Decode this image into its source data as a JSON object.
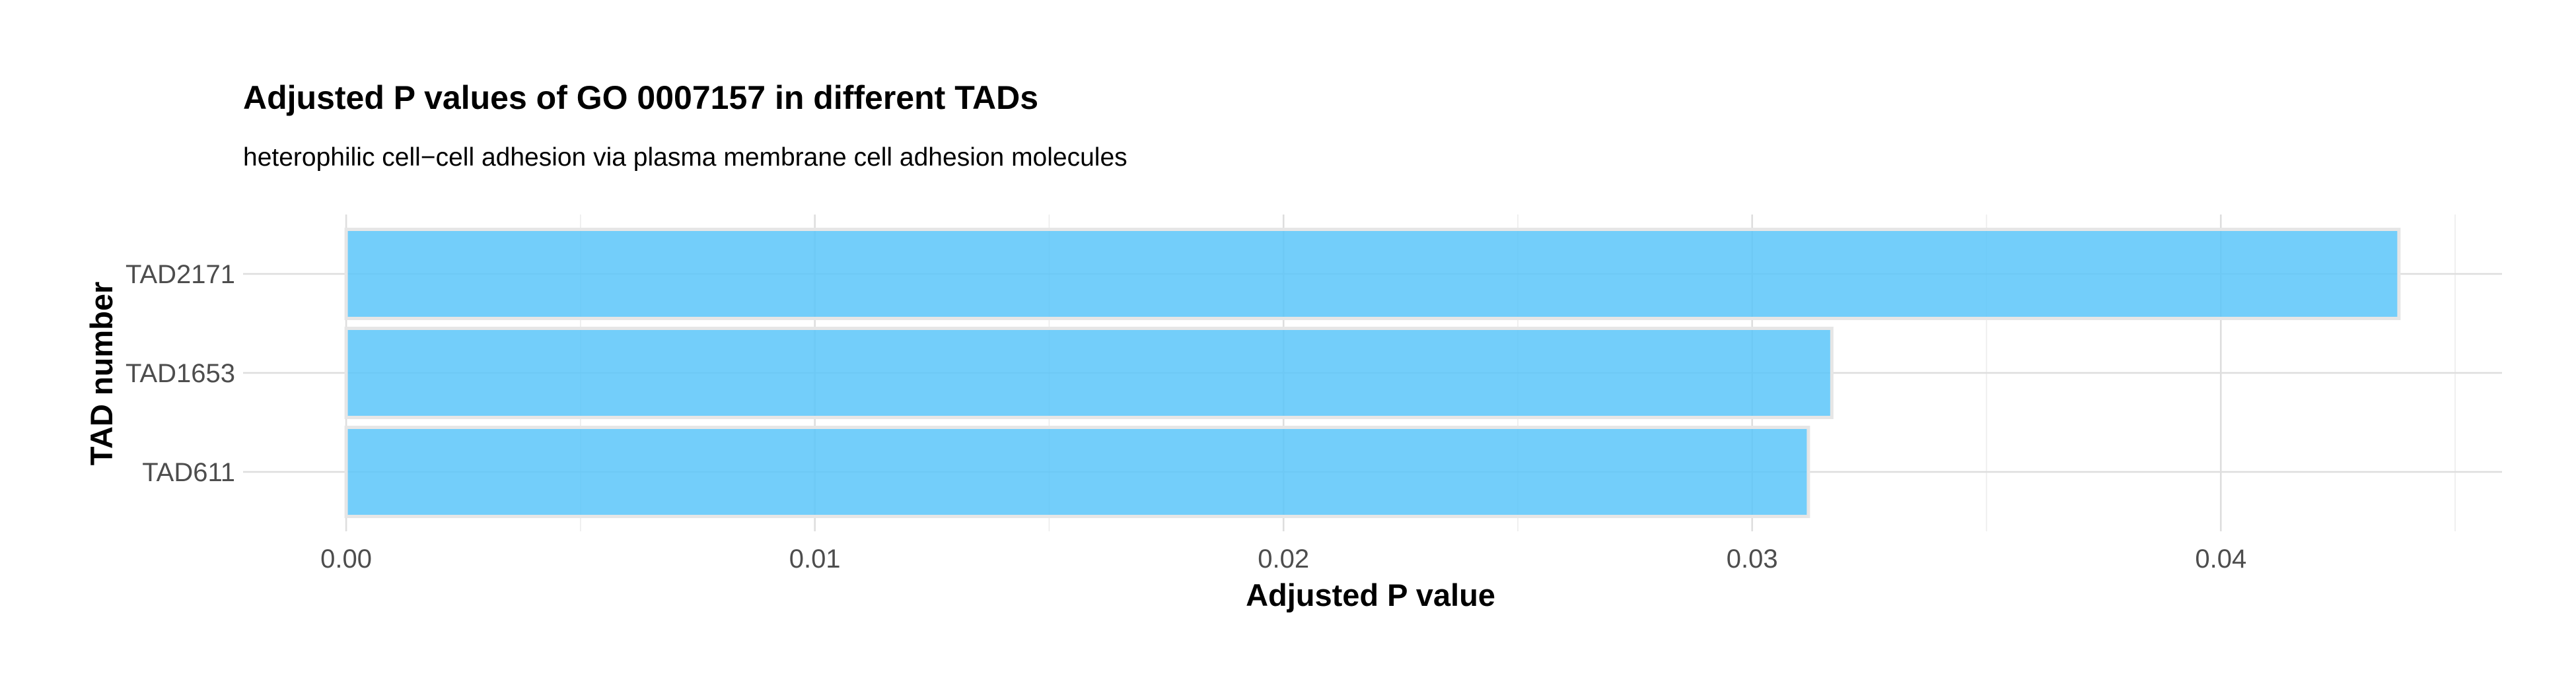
{
  "chart_data": {
    "type": "bar",
    "orientation": "horizontal",
    "title": "Adjusted P values of GO 0007157 in different TADs",
    "subtitle": "heterophilic cell−cell adhesion via plasma membrane cell adhesion molecules",
    "xlabel": "Adjusted P value",
    "ylabel": "TAD number",
    "categories": [
      "TAD2171",
      "TAD1653",
      "TAD611"
    ],
    "values": [
      0.0438,
      0.0317,
      0.0312
    ],
    "xlim": [
      -0.0022,
      0.046
    ],
    "x_ticks": [
      0,
      0.01,
      0.02,
      0.03,
      0.04
    ],
    "x_tick_labels": [
      "0.00",
      "0.01",
      "0.02",
      "0.03",
      "0.04"
    ],
    "x_minor_ticks": [
      0.005,
      0.015,
      0.025,
      0.035,
      0.045
    ],
    "grid": true,
    "legend": false,
    "bar_color": "#5bc6f9",
    "bar_outline_color": "#e6e6e6"
  }
}
